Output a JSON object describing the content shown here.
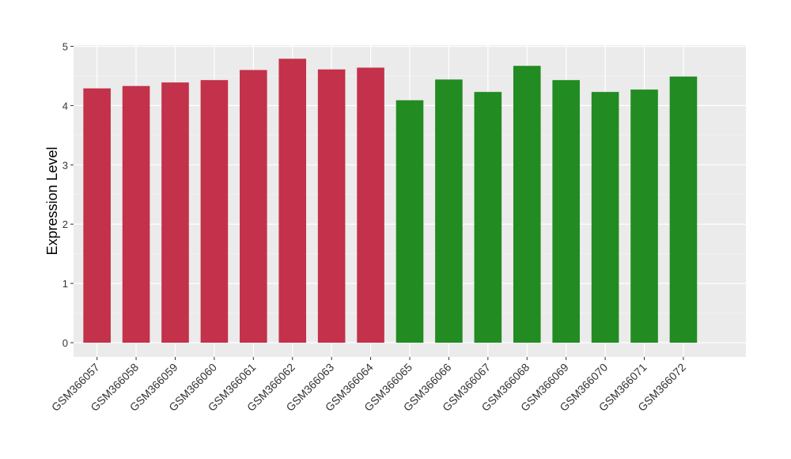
{
  "chart_data": {
    "type": "bar",
    "y_label": "Expression Level",
    "categories": [
      "GSM366057",
      "GSM366058",
      "GSM366059",
      "GSM366060",
      "GSM366061",
      "GSM366062",
      "GSM366063",
      "GSM366064",
      "GSM366065",
      "GSM366066",
      "GSM366067",
      "GSM366068",
      "GSM366069",
      "GSM366070",
      "GSM366071",
      "GSM366072"
    ],
    "values": [
      4.29,
      4.33,
      4.39,
      4.43,
      4.6,
      4.79,
      4.61,
      4.64,
      4.09,
      4.44,
      4.23,
      4.67,
      4.43,
      4.23,
      4.27,
      4.49
    ],
    "colors": [
      "#c3314a",
      "#c3314a",
      "#c3314a",
      "#c3314a",
      "#c3314a",
      "#c3314a",
      "#c3314a",
      "#c3314a",
      "#228b22",
      "#228b22",
      "#228b22",
      "#228b22",
      "#228b22",
      "#228b22",
      "#228b22",
      "#228b22"
    ],
    "ylim": [
      -0.24,
      5.02
    ],
    "yticks": [
      0,
      1,
      2,
      3,
      4,
      5
    ],
    "grid": true
  }
}
